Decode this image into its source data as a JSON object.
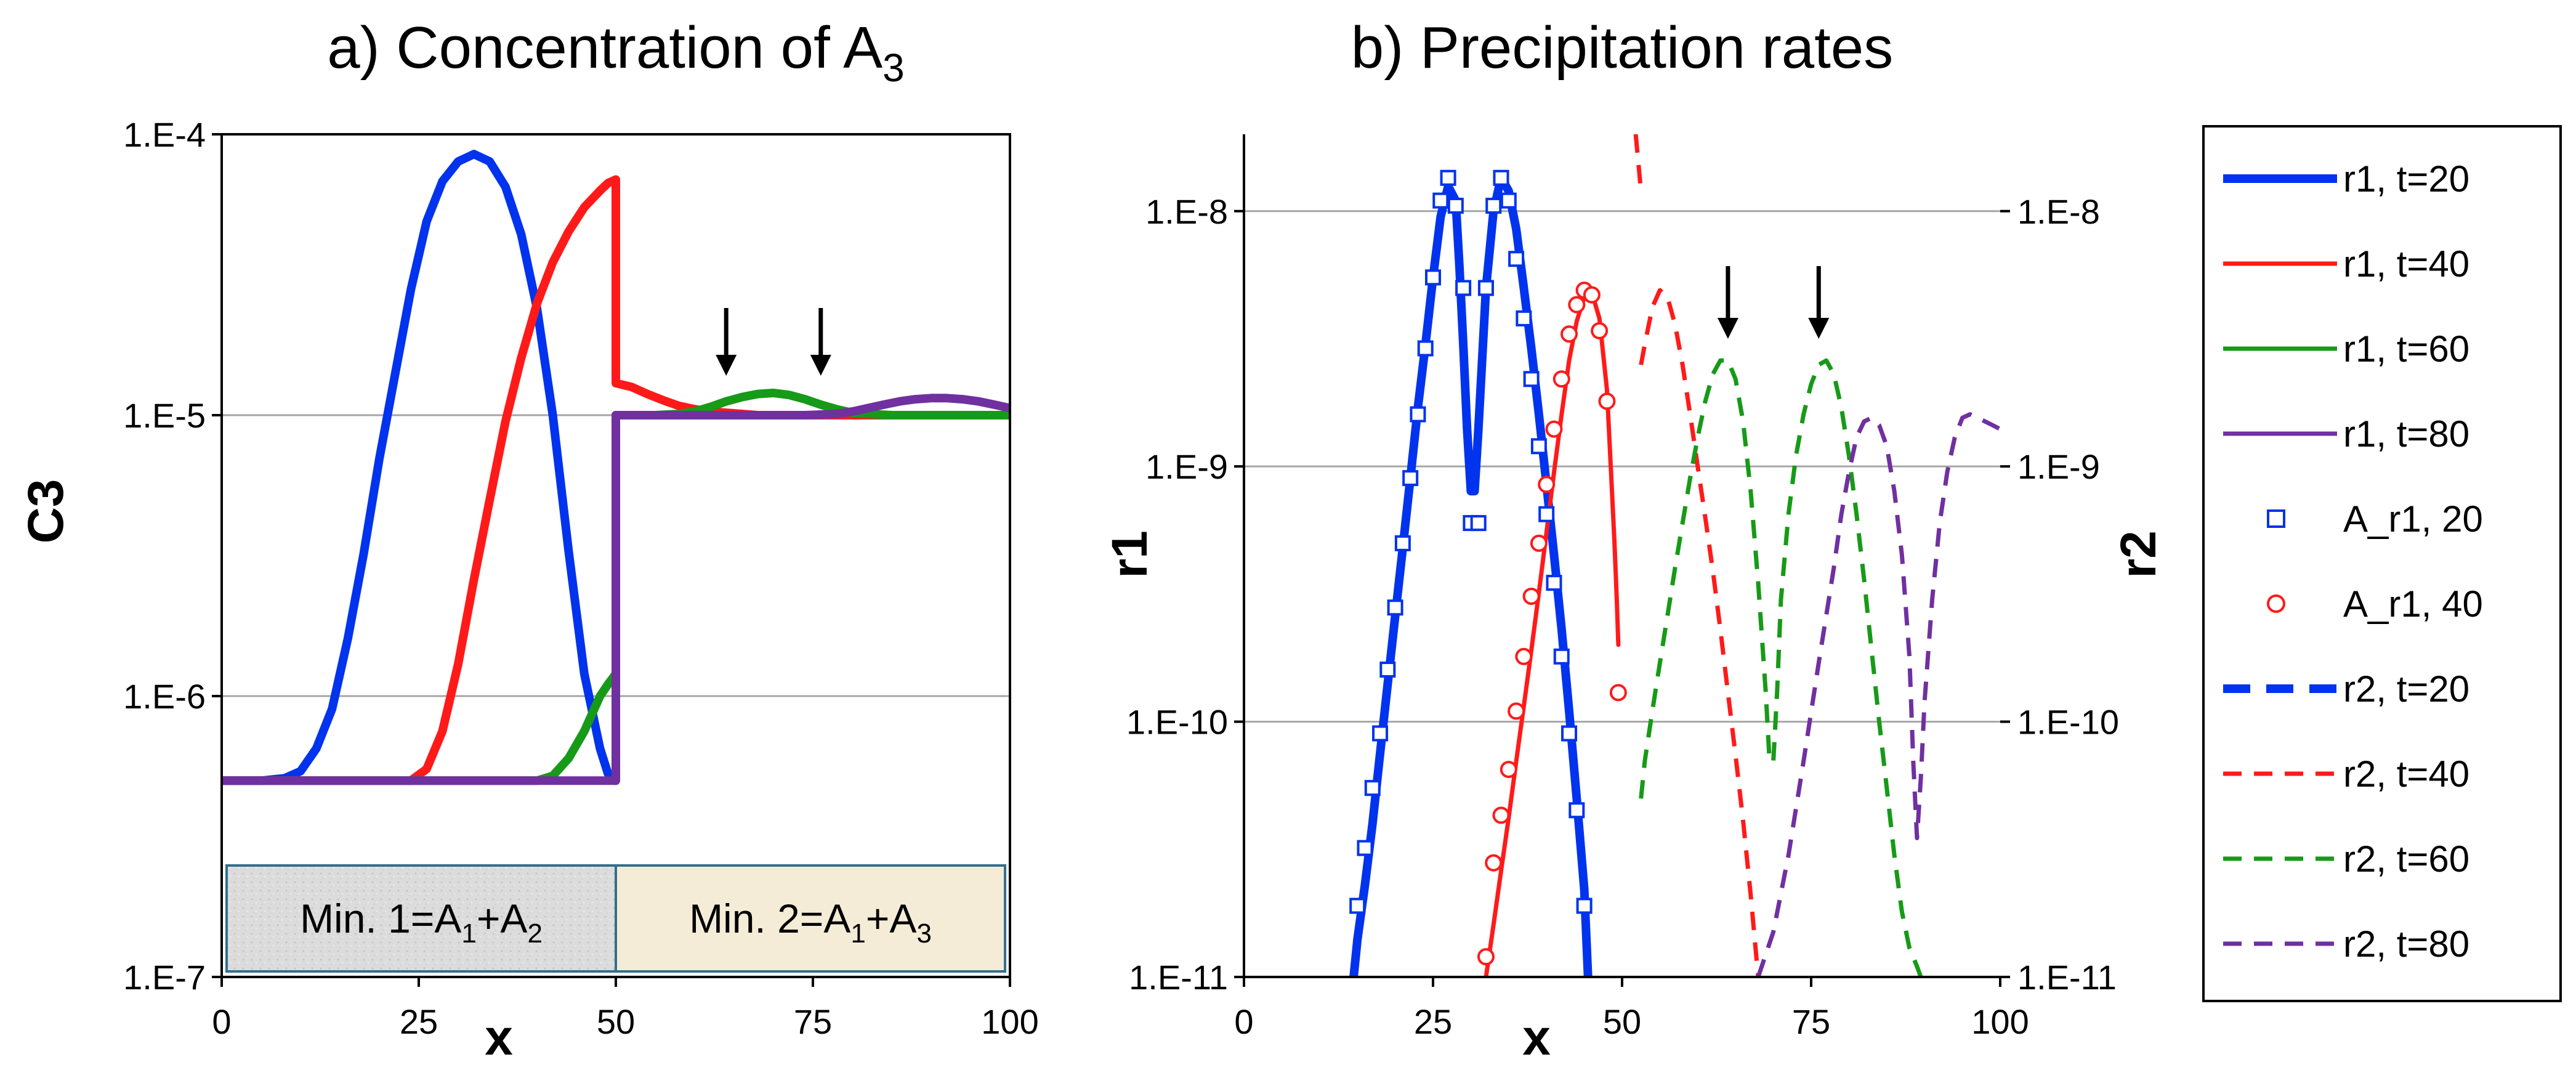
{
  "colors": {
    "blue": "#0033ee",
    "red": "#ff1a1a",
    "green": "#179a17",
    "purple": "#7030a0",
    "grid": "#a6a6a6",
    "region1_fill": "#dcdcdc",
    "region2_fill": "#f4ecd6",
    "region_border": "#31708f"
  },
  "chart_data": [
    {
      "type": "line",
      "title": "a) Concentration of A",
      "title_subscript": "3",
      "xlabel": "x",
      "ylabel": "C3",
      "yscale": "log",
      "xlim": [
        0,
        100
      ],
      "ylim": [
        1e-07,
        0.0001
      ],
      "xticks": [
        0,
        25,
        50,
        75,
        100
      ],
      "xtick_labels": [
        "0",
        "25",
        "50",
        "75",
        "100"
      ],
      "yticks": [
        1e-07,
        1e-06,
        1e-05,
        0.0001
      ],
      "ytick_labels": [
        "1.E-7",
        "1.E-6",
        "1.E-5",
        "1.E-4"
      ],
      "grid": true,
      "regions": [
        {
          "text": "Min. 1=A",
          "sub1": "1",
          "mid": "+A",
          "sub2": "2",
          "x_range": [
            0,
            50
          ]
        },
        {
          "text": "Min. 2=A",
          "sub1": "1",
          "mid": "+A",
          "sub2": "3",
          "x_range": [
            50,
            100
          ]
        }
      ],
      "arrows_at_x": [
        64,
        76
      ],
      "series": [
        {
          "name": "t=20",
          "color": "blue",
          "x": [
            -2,
            5,
            8,
            10,
            12,
            14,
            16,
            18,
            20,
            22,
            24,
            26,
            28,
            30,
            32,
            34,
            36,
            38,
            40,
            42,
            44,
            46,
            48,
            49,
            50,
            50,
            55,
            60,
            70,
            80,
            90,
            100
          ],
          "y": [
            5e-07,
            5e-07,
            5.1e-07,
            5.4e-07,
            6.5e-07,
            9e-07,
            1.6e-06,
            3.2e-06,
            7e-06,
            1.4e-05,
            2.8e-05,
            4.9e-05,
            6.8e-05,
            8e-05,
            8.5e-05,
            8e-05,
            6.5e-05,
            4.4e-05,
            2.4e-05,
            1e-05,
            3.3e-06,
            1.2e-06,
            6.5e-07,
            5.3e-07,
            5e-07,
            1e-05,
            1e-05,
            1e-05,
            1e-05,
            1e-05,
            1e-05,
            1e-05
          ]
        },
        {
          "name": "t=40",
          "color": "red",
          "x": [
            -2,
            24,
            26,
            28,
            30,
            32,
            34,
            36,
            38,
            40,
            42,
            44,
            46,
            48,
            49,
            50,
            50,
            52,
            54,
            56,
            58,
            60,
            62,
            64,
            66,
            68,
            70,
            80,
            90,
            100
          ],
          "y": [
            5e-07,
            5e-07,
            5.5e-07,
            7.5e-07,
            1.3e-06,
            2.6e-06,
            5e-06,
            9.5e-06,
            1.6e-05,
            2.5e-05,
            3.5e-05,
            4.5e-05,
            5.5e-05,
            6.3e-05,
            6.7e-05,
            6.9e-05,
            1.3e-05,
            1.26e-05,
            1.19e-05,
            1.13e-05,
            1.08e-05,
            1.05e-05,
            1.03e-05,
            1.02e-05,
            1.01e-05,
            1e-05,
            1e-05,
            1e-05,
            1e-05,
            1e-05
          ]
        },
        {
          "name": "t=60",
          "color": "green",
          "x": [
            -2,
            40,
            42,
            44,
            46,
            48,
            49,
            50,
            50,
            55,
            58,
            60,
            62,
            64,
            66,
            68,
            70,
            72,
            74,
            76,
            78,
            80,
            82,
            85,
            90,
            100
          ],
          "y": [
            5e-07,
            5e-07,
            5.2e-07,
            6e-07,
            7.5e-07,
            1e-06,
            1.1e-06,
            1.2e-06,
            1e-05,
            1e-05,
            1.01e-05,
            1.03e-05,
            1.07e-05,
            1.12e-05,
            1.16e-05,
            1.19e-05,
            1.2e-05,
            1.18e-05,
            1.14e-05,
            1.09e-05,
            1.05e-05,
            1.02e-05,
            1.01e-05,
            1e-05,
            1e-05,
            1e-05
          ]
        },
        {
          "name": "t=80",
          "color": "purple",
          "x": [
            -2,
            50,
            50,
            70,
            74,
            78,
            80,
            82,
            84,
            86,
            88,
            90,
            92,
            94,
            96,
            98,
            100
          ],
          "y": [
            5e-07,
            5e-07,
            1e-05,
            1e-05,
            1e-05,
            1.01e-05,
            1.03e-05,
            1.06e-05,
            1.09e-05,
            1.12e-05,
            1.14e-05,
            1.15e-05,
            1.15e-05,
            1.14e-05,
            1.12e-05,
            1.09e-05,
            1.06e-05
          ]
        }
      ]
    },
    {
      "type": "line",
      "title": "b) Precipitation rates",
      "xlabel": "x",
      "ylabel": "r1",
      "y2label": "r2",
      "yscale": "log",
      "xlim": [
        0,
        100
      ],
      "ylim": [
        1e-11,
        2e-08
      ],
      "xticks": [
        0,
        25,
        50,
        75,
        100
      ],
      "xtick_labels": [
        "0",
        "25",
        "50",
        "75",
        "100"
      ],
      "yticks": [
        1e-11,
        1e-10,
        1e-09,
        1e-08
      ],
      "ytick_labels": [
        "1.E-11",
        "1.E-10",
        "1.E-9",
        "1.E-8"
      ],
      "y2tick_labels": [
        "1.E-11",
        "1.E-10",
        "1.E-9",
        "1.E-8"
      ],
      "grid": true,
      "arrows_at_x": [
        64,
        76
      ],
      "series": [
        {
          "name": "r1, t=20",
          "color": "blue",
          "style": "thick",
          "x": [
            14.5,
            15,
            16,
            17,
            18,
            19,
            20,
            21,
            22,
            23,
            24,
            25,
            26,
            27,
            28,
            28.5,
            29,
            29.5,
            30,
            30.5,
            31,
            32,
            33,
            34,
            35,
            36,
            37,
            38,
            39,
            40,
            41,
            42,
            43,
            44,
            45,
            45.5
          ],
          "y": [
            1e-11,
            1.4e-11,
            2.3e-11,
            4e-11,
            7.5e-11,
            1.4e-10,
            2.6e-10,
            4.8e-10,
            9e-10,
            1.7e-09,
            3e-09,
            5.5e-09,
            9.5e-09,
            1.25e-08,
            1.1e-08,
            6e-09,
            3e-09,
            1.4e-09,
            8e-10,
            8e-10,
            1.4e-09,
            5e-09,
            1e-08,
            1.35e-08,
            1.2e-08,
            8.5e-09,
            5e-09,
            2.9e-09,
            1.6e-09,
            8.5e-10,
            4.5e-10,
            2.3e-10,
            1.1e-10,
            5e-11,
            2.2e-11,
            1e-11
          ]
        },
        {
          "name": "r1, t=40",
          "color": "red",
          "style": "solid",
          "x": [
            32,
            33,
            34,
            35,
            36,
            37,
            38,
            39,
            40,
            41,
            42,
            43,
            44,
            45,
            46,
            47,
            48,
            48.5,
            49,
            49.3,
            49.5
          ],
          "y": [
            1e-11,
            1.6e-11,
            2.6e-11,
            4.2e-11,
            7e-11,
            1.15e-10,
            1.9e-10,
            3.2e-10,
            5.5e-10,
            9.5e-10,
            1.6e-09,
            2.6e-09,
            3.7e-09,
            4.6e-09,
            4.8e-09,
            3.8e-09,
            2e-09,
            1e-09,
            5e-10,
            3e-10,
            2e-10
          ]
        },
        {
          "name": "A_r1, 20",
          "color": "blue",
          "marker": "square",
          "x": [
            15,
            16,
            17,
            18,
            19,
            20,
            21,
            22,
            23,
            24,
            25,
            26,
            27,
            28,
            29,
            30,
            31,
            32,
            33,
            34,
            35,
            36,
            37,
            38,
            39,
            40,
            41,
            42,
            43,
            44,
            45
          ],
          "y": [
            1.9e-11,
            3.2e-11,
            5.5e-11,
            9e-11,
            1.6e-10,
            2.8e-10,
            5e-10,
            9e-10,
            1.6e-09,
            2.9e-09,
            5.5e-09,
            1.1e-08,
            1.35e-08,
            1.05e-08,
            5e-09,
            6e-10,
            6e-10,
            5e-09,
            1.05e-08,
            1.35e-08,
            1.1e-08,
            6.5e-09,
            3.8e-09,
            2.2e-09,
            1.2e-09,
            6.5e-10,
            3.5e-10,
            1.8e-10,
            9e-11,
            4.5e-11,
            1.9e-11
          ]
        },
        {
          "name": "A_r1, 40",
          "color": "red",
          "marker": "circle",
          "x": [
            32,
            33,
            34,
            35,
            36,
            37,
            38,
            39,
            40,
            41,
            42,
            43,
            44,
            45,
            46,
            47,
            48,
            49.5
          ],
          "y": [
            1.2e-11,
            2.8e-11,
            4.3e-11,
            6.5e-11,
            1.1e-10,
            1.8e-10,
            3.1e-10,
            5e-10,
            8.5e-10,
            1.4e-09,
            2.2e-09,
            3.3e-09,
            4.3e-09,
            4.9e-09,
            4.7e-09,
            3.4e-09,
            1.8e-09,
            1.3e-10
          ]
        },
        {
          "name": "r2, t=20",
          "color": "blue",
          "style": "thick-dashed",
          "x": [],
          "y": []
        },
        {
          "name": "r2, t=40",
          "color": "red",
          "style": "dashed",
          "x": [
            52.5,
            53,
            54,
            55,
            56,
            57,
            58,
            59,
            60,
            61,
            62,
            63,
            64,
            65,
            66,
            67,
            68
          ],
          "y": [
            2.5e-09,
            3e-09,
            4.2e-09,
            4.9e-09,
            4.6e-09,
            3.6e-09,
            2.5e-09,
            1.6e-09,
            1e-09,
            6.3e-10,
            3.9e-10,
            2.3e-10,
            1.3e-10,
            7.4e-11,
            4.1e-11,
            2.1e-11,
            1e-11
          ]
        },
        {
          "name": "r2, t=40 front",
          "color": "red",
          "style": "dashed",
          "x": [
            51.8,
            52.5
          ],
          "y": [
            2e-08,
            1.2e-08
          ]
        },
        {
          "name": "r2, t=60",
          "color": "green",
          "style": "dashed",
          "x": [
            52.5,
            53,
            54,
            55,
            56,
            57,
            58,
            59,
            60,
            61,
            62,
            63,
            64,
            65,
            66,
            67,
            68,
            69,
            69.5,
            70,
            70.5,
            71,
            72,
            73,
            74,
            75,
            76,
            77,
            78,
            79,
            80,
            81,
            82,
            83,
            84,
            85,
            86,
            87,
            88,
            89,
            89.5
          ],
          "y": [
            5e-11,
            7e-11,
            1.1e-10,
            1.7e-10,
            2.6e-10,
            4e-10,
            6e-10,
            9e-10,
            1.3e-09,
            1.8e-09,
            2.3e-09,
            2.6e-09,
            2.6e-09,
            2.2e-09,
            1.5e-09,
            8e-10,
            3.5e-10,
            1.3e-10,
            7e-11,
            7e-11,
            1.3e-10,
            3e-10,
            6.5e-10,
            1.1e-09,
            1.6e-09,
            2.1e-09,
            2.5e-09,
            2.6e-09,
            2.3e-09,
            1.7e-09,
            1.1e-09,
            6.5e-10,
            3.6e-10,
            1.9e-10,
            1e-10,
            5.5e-11,
            3e-11,
            1.8e-11,
            1.3e-11,
            1.1e-11,
            1e-11
          ]
        },
        {
          "name": "r2, t=80",
          "color": "purple",
          "style": "dashed",
          "x": [
            68,
            70,
            72,
            74,
            76,
            78,
            79,
            80,
            81,
            82,
            83,
            84,
            85,
            86,
            87,
            88,
            88.5,
            89,
            89.5,
            90,
            91,
            92,
            93,
            94,
            95,
            96,
            97,
            98,
            99,
            100
          ],
          "y": [
            1e-11,
            1.5e-11,
            3e-11,
            7e-11,
            1.7e-10,
            4e-10,
            6.5e-10,
            9.5e-10,
            1.3e-09,
            1.5e-09,
            1.55e-09,
            1.45e-09,
            1.2e-09,
            8e-10,
            4.5e-10,
            1.8e-10,
            7e-11,
            3.5e-11,
            6e-11,
            1.2e-10,
            3e-10,
            6e-10,
            9.5e-10,
            1.3e-09,
            1.55e-09,
            1.6e-09,
            1.55e-09,
            1.5e-09,
            1.45e-09,
            1.4e-09
          ]
        }
      ]
    }
  ],
  "legend": {
    "position": "right",
    "entries": [
      {
        "label": "r1, t=20",
        "color": "blue",
        "kind": "thick"
      },
      {
        "label": "r1, t=40",
        "color": "red",
        "kind": "solid"
      },
      {
        "label": "r1, t=60",
        "color": "green",
        "kind": "solid"
      },
      {
        "label": "r1, t=80",
        "color": "purple",
        "kind": "solid"
      },
      {
        "label": "A_r1, 20",
        "color": "blue",
        "kind": "square"
      },
      {
        "label": "A_r1, 40",
        "color": "red",
        "kind": "circle"
      },
      {
        "label": "r2, t=20",
        "color": "blue",
        "kind": "thick-dashed"
      },
      {
        "label": "r2, t=40",
        "color": "red",
        "kind": "dashed"
      },
      {
        "label": "r2, t=60",
        "color": "green",
        "kind": "dashed"
      },
      {
        "label": "r2, t=80",
        "color": "purple",
        "kind": "dashed"
      }
    ]
  }
}
